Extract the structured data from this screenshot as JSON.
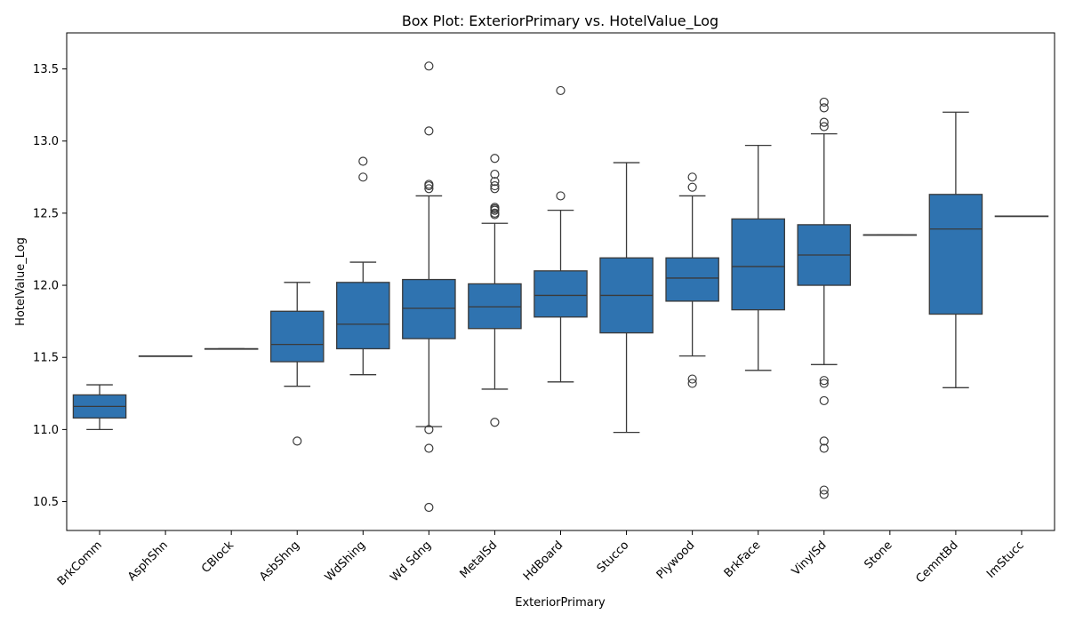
{
  "chart_data": {
    "type": "box",
    "title": "Box Plot: ExteriorPrimary vs. HotelValue_Log",
    "xlabel": "ExteriorPrimary",
    "ylabel": "HotelValue_Log",
    "ylim": [
      10.3,
      13.75
    ],
    "yticks": [
      "10.5",
      "11.0",
      "11.5",
      "12.0",
      "12.5",
      "13.0",
      "13.5"
    ],
    "grid": false,
    "box_color": "#2f73b0",
    "line_color": "#3a3a3a",
    "categories": [
      "BrkComm",
      "AsphShn",
      "CBlock",
      "AsbShng",
      "WdShing",
      "Wd Sdng",
      "MetalSd",
      "HdBoard",
      "Stucco",
      "Plywood",
      "BrkFace",
      "VinylSd",
      "Stone",
      "CemntBd",
      "ImStucc"
    ],
    "boxes": [
      {
        "whislo": 11.0,
        "q1": 11.08,
        "med": 11.16,
        "q3": 11.24,
        "whishi": 11.31,
        "fliers": []
      },
      {
        "whislo": 11.51,
        "q1": 11.51,
        "med": 11.51,
        "q3": 11.51,
        "whishi": 11.51,
        "fliers": []
      },
      {
        "whislo": 11.56,
        "q1": 11.56,
        "med": 11.56,
        "q3": 11.56,
        "whishi": 11.56,
        "fliers": []
      },
      {
        "whislo": 11.3,
        "q1": 11.47,
        "med": 11.59,
        "q3": 11.82,
        "whishi": 12.02,
        "fliers": [
          10.92
        ]
      },
      {
        "whislo": 11.38,
        "q1": 11.56,
        "med": 11.73,
        "q3": 12.02,
        "whishi": 12.16,
        "fliers": [
          12.75,
          12.86
        ]
      },
      {
        "whislo": 11.02,
        "q1": 11.63,
        "med": 11.84,
        "q3": 12.04,
        "whishi": 12.62,
        "fliers": [
          11.0,
          10.87,
          10.46,
          12.67,
          12.69,
          12.7,
          13.07,
          13.52
        ]
      },
      {
        "whislo": 11.28,
        "q1": 11.7,
        "med": 11.85,
        "q3": 12.01,
        "whishi": 12.43,
        "fliers": [
          11.05,
          12.49,
          12.5,
          12.52,
          12.53,
          12.54,
          12.67,
          12.69,
          12.72,
          12.77,
          12.88
        ]
      },
      {
        "whislo": 11.33,
        "q1": 11.78,
        "med": 11.93,
        "q3": 12.1,
        "whishi": 12.52,
        "fliers": [
          12.62,
          13.35
        ]
      },
      {
        "whislo": 10.98,
        "q1": 11.67,
        "med": 11.93,
        "q3": 12.19,
        "whishi": 12.85,
        "fliers": []
      },
      {
        "whislo": 11.51,
        "q1": 11.89,
        "med": 12.05,
        "q3": 12.19,
        "whishi": 12.62,
        "fliers": [
          11.32,
          11.35,
          12.68,
          12.75
        ]
      },
      {
        "whislo": 11.41,
        "q1": 11.83,
        "med": 12.13,
        "q3": 12.46,
        "whishi": 12.97,
        "fliers": []
      },
      {
        "whislo": 11.45,
        "q1": 12.0,
        "med": 12.21,
        "q3": 12.42,
        "whishi": 13.05,
        "fliers": [
          11.32,
          11.34,
          11.2,
          10.92,
          10.87,
          10.58,
          10.55,
          13.1,
          13.13,
          13.23,
          13.27
        ]
      },
      {
        "whislo": 12.35,
        "q1": 12.35,
        "med": 12.35,
        "q3": 12.35,
        "whishi": 12.35,
        "fliers": []
      },
      {
        "whislo": 11.29,
        "q1": 11.8,
        "med": 12.39,
        "q3": 12.63,
        "whishi": 13.2,
        "fliers": []
      },
      {
        "whislo": 12.48,
        "q1": 12.48,
        "med": 12.48,
        "q3": 12.48,
        "whishi": 12.48,
        "fliers": []
      }
    ]
  }
}
